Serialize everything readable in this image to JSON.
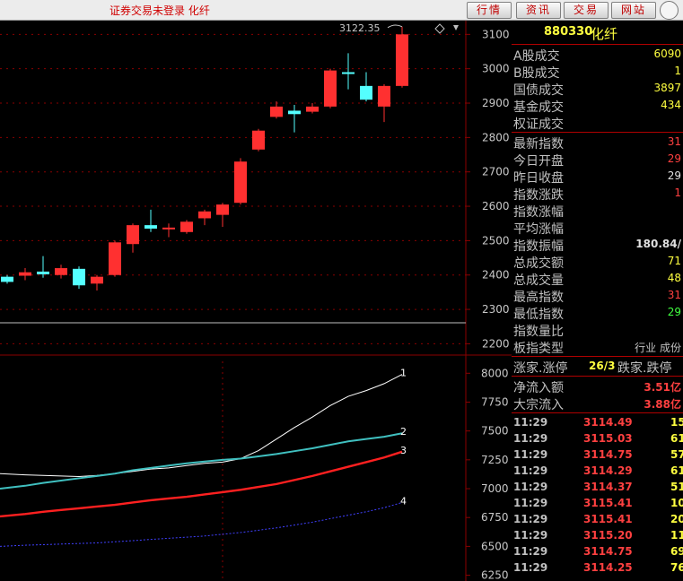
{
  "topbar": {
    "status_text": "证券交易未登录  化纤",
    "buttons": [
      "行情",
      "资讯",
      "交易",
      "网站"
    ]
  },
  "colors": {
    "up": "#ff3030",
    "down": "#54ffff",
    "grid": "#8b0000",
    "axis_text": "#c8c8c8",
    "ma1": "#ffffff",
    "ma2": "#40c0c0",
    "ma3": "#ff2020",
    "ma4": "#4040ff"
  },
  "chart_data": [
    {
      "type": "candlestick",
      "title": "",
      "annotation": "3122.35",
      "y_ticks": [
        3100,
        3000,
        2900,
        2800,
        2700,
        2600,
        2500,
        2400,
        2300,
        2200
      ],
      "ylim": [
        2175,
        3140
      ],
      "candles": [
        {
          "o": 2395,
          "c": 2380,
          "h": 2400,
          "l": 2375
        },
        {
          "o": 2398,
          "c": 2408,
          "h": 2420,
          "l": 2385
        },
        {
          "o": 2410,
          "c": 2402,
          "h": 2455,
          "l": 2392
        },
        {
          "o": 2400,
          "c": 2420,
          "h": 2430,
          "l": 2390
        },
        {
          "o": 2418,
          "c": 2370,
          "h": 2425,
          "l": 2360
        },
        {
          "o": 2375,
          "c": 2395,
          "h": 2400,
          "l": 2355
        },
        {
          "o": 2400,
          "c": 2495,
          "h": 2500,
          "l": 2395
        },
        {
          "o": 2490,
          "c": 2545,
          "h": 2550,
          "l": 2465
        },
        {
          "o": 2545,
          "c": 2535,
          "h": 2590,
          "l": 2525
        },
        {
          "o": 2535,
          "c": 2538,
          "h": 2550,
          "l": 2510
        },
        {
          "o": 2525,
          "c": 2555,
          "h": 2560,
          "l": 2520
        },
        {
          "o": 2565,
          "c": 2585,
          "h": 2590,
          "l": 2545
        },
        {
          "o": 2575,
          "c": 2605,
          "h": 2610,
          "l": 2540
        },
        {
          "o": 2610,
          "c": 2730,
          "h": 2740,
          "l": 2605
        },
        {
          "o": 2765,
          "c": 2820,
          "h": 2825,
          "l": 2760
        },
        {
          "o": 2860,
          "c": 2890,
          "h": 2905,
          "l": 2855
        },
        {
          "o": 2878,
          "c": 2868,
          "h": 2895,
          "l": 2815
        },
        {
          "o": 2875,
          "c": 2890,
          "h": 2900,
          "l": 2870
        },
        {
          "o": 2890,
          "c": 2995,
          "h": 3000,
          "l": 2885
        },
        {
          "o": 2990,
          "c": 2985,
          "h": 3045,
          "l": 2940
        },
        {
          "o": 2950,
          "c": 2910,
          "h": 2990,
          "l": 2905
        },
        {
          "o": 2890,
          "c": 2950,
          "h": 2955,
          "l": 2845
        },
        {
          "o": 2950,
          "c": 3100,
          "h": 3122.35,
          "l": 2945
        }
      ]
    },
    {
      "type": "line",
      "title": "",
      "y_ticks": [
        8000,
        7750,
        7500,
        7250,
        7000,
        6750,
        6500,
        6250
      ],
      "ylim": [
        6200,
        8080
      ],
      "series": [
        {
          "name": "1",
          "values": [
            7130,
            7120,
            7115,
            7110,
            7105,
            7115,
            7130,
            7150,
            7170,
            7180,
            7200,
            7220,
            7230,
            7260,
            7330,
            7430,
            7530,
            7620,
            7720,
            7800,
            7850,
            7910,
            7990
          ]
        },
        {
          "name": "2",
          "values": [
            7000,
            7025,
            7050,
            7070,
            7090,
            7110,
            7130,
            7160,
            7180,
            7200,
            7220,
            7235,
            7250,
            7260,
            7280,
            7300,
            7325,
            7350,
            7380,
            7410,
            7430,
            7450,
            7480
          ]
        },
        {
          "name": "3",
          "values": [
            6760,
            6780,
            6800,
            6815,
            6830,
            6845,
            6860,
            6880,
            6900,
            6915,
            6930,
            6950,
            6970,
            6990,
            7015,
            7040,
            7075,
            7110,
            7150,
            7190,
            7230,
            7270,
            7320
          ]
        },
        {
          "name": "4",
          "values": [
            6500,
            6510,
            6515,
            6520,
            6525,
            6530,
            6540,
            6550,
            6560,
            6570,
            6580,
            6590,
            6605,
            6620,
            6640,
            6660,
            6685,
            6710,
            6740,
            6770,
            6800,
            6835,
            6880
          ]
        }
      ]
    }
  ],
  "panel": {
    "header": {
      "code": "880330",
      "name": "化纤"
    },
    "volumes": [
      {
        "label": "A股成交",
        "value": "6090"
      },
      {
        "label": "B股成交",
        "value": "1"
      },
      {
        "label": "国债成交",
        "value": "3897"
      },
      {
        "label": "基金成交",
        "value": "434"
      },
      {
        "label": "权证成交",
        "value": ""
      }
    ],
    "stats": [
      {
        "label": "最新指数",
        "value": "31",
        "color": "#ff4040"
      },
      {
        "label": "今日开盘",
        "value": "29",
        "color": "#ff4040"
      },
      {
        "label": "昨日收盘",
        "value": "29",
        "color": "#e0e0e0"
      },
      {
        "label": "指数涨跌",
        "value": "1",
        "color": "#ff4040"
      },
      {
        "label": "指数涨幅",
        "value": "",
        "color": "#ff4040"
      },
      {
        "label": "平均涨幅",
        "value": "",
        "color": "#ff4040"
      },
      {
        "label": "指数振幅",
        "value": "180.84/",
        "color": "#e0e0e0"
      },
      {
        "label": "总成交额",
        "value": "71",
        "color": "#ffff40"
      },
      {
        "label": "总成交量",
        "value": "48",
        "color": "#ffff40"
      },
      {
        "label": "最高指数",
        "value": "31",
        "color": "#ff4040"
      },
      {
        "label": "最低指数",
        "value": "29",
        "color": "#40ff40"
      },
      {
        "label": "指数量比",
        "value": "",
        "color": "#e0e0e0"
      },
      {
        "label": "板指类型",
        "value": "行业 成份",
        "color": "#c0c0c0"
      }
    ],
    "breadth": {
      "up_label": "涨家.涨停",
      "up_value": "26/3",
      "down_label": "跌家.跌停"
    },
    "flows": [
      {
        "label": "净流入额",
        "value": "3.51亿"
      },
      {
        "label": "大宗流入",
        "value": "3.88亿"
      }
    ],
    "ticks": [
      {
        "time": "11:29",
        "price": "3114.49",
        "vol": "15"
      },
      {
        "time": "11:29",
        "price": "3115.03",
        "vol": "61"
      },
      {
        "time": "11:29",
        "price": "3114.75",
        "vol": "57"
      },
      {
        "time": "11:29",
        "price": "3114.29",
        "vol": "61"
      },
      {
        "time": "11:29",
        "price": "3114.37",
        "vol": "51"
      },
      {
        "time": "11:29",
        "price": "3115.41",
        "vol": "10"
      },
      {
        "time": "11:29",
        "price": "3115.41",
        "vol": "20"
      },
      {
        "time": "11:29",
        "price": "3115.20",
        "vol": "11"
      },
      {
        "time": "11:29",
        "price": "3114.75",
        "vol": "69"
      },
      {
        "time": "11:29",
        "price": "3114.25",
        "vol": "76"
      }
    ]
  }
}
